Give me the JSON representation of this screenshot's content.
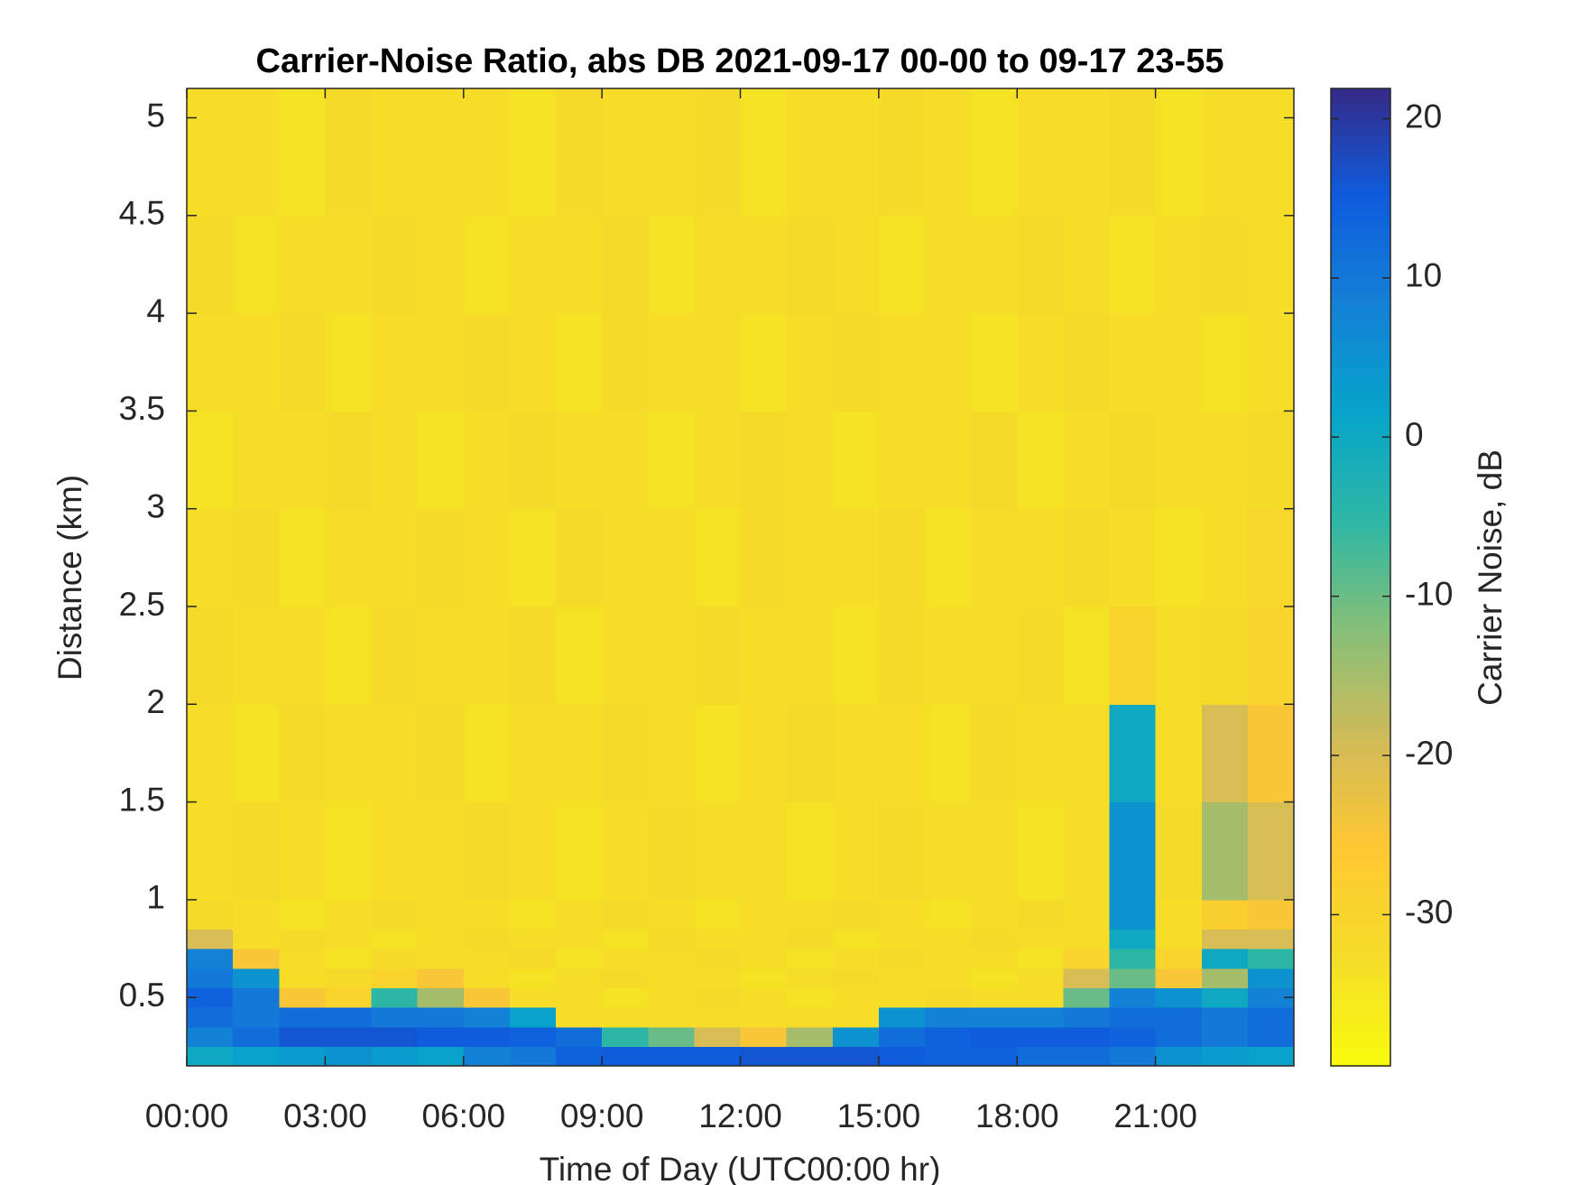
{
  "chart_data": {
    "type": "heatmap",
    "title": "Carrier-Noise Ratio, abs DB 2021-09-17 00-00 to 09-17 23-55",
    "xlabel": "Time of Day (UTC00:00 hr)",
    "ylabel": "Distance (km)",
    "colorbar_label": "Carrier Noise, dB",
    "colormap": "parula",
    "colormap_reversed": true,
    "x_edges": [
      0,
      1,
      2,
      3,
      4,
      5,
      6,
      7,
      8,
      9,
      10,
      11,
      12,
      13,
      14,
      15,
      16,
      17,
      18,
      19,
      20,
      21,
      22,
      23,
      24
    ],
    "y_edges": [
      0.15,
      0.25,
      0.35,
      0.45,
      0.55,
      0.65,
      0.75,
      0.85,
      1.0,
      1.5,
      2.0,
      2.5,
      3.0,
      3.5,
      4.0,
      4.5,
      5.15
    ],
    "z": [
      [
        0,
        2,
        3,
        5,
        3,
        2,
        8,
        10,
        14,
        15,
        15,
        15,
        16,
        16,
        16,
        15,
        14,
        14,
        12,
        12,
        10,
        5,
        3,
        2
      ],
      [
        8,
        12,
        16,
        16,
        16,
        15,
        15,
        14,
        12,
        -5,
        -10,
        -20,
        -25,
        -15,
        5,
        12,
        14,
        15,
        15,
        15,
        14,
        12,
        10,
        12
      ],
      [
        12,
        10,
        12,
        12,
        10,
        10,
        8,
        2,
        -33,
        -33,
        -33,
        -33,
        -33,
        -33,
        -33,
        5,
        8,
        8,
        8,
        10,
        12,
        12,
        10,
        12
      ],
      [
        14,
        10,
        -25,
        -30,
        -5,
        -15,
        -25,
        -33,
        -33,
        -34,
        -33,
        -32,
        -33,
        -34,
        -33,
        -33,
        -32,
        -33,
        -33,
        -10,
        8,
        5,
        0,
        8
      ],
      [
        10,
        5,
        -33,
        -32,
        -30,
        -25,
        -33,
        -34,
        -33,
        -32,
        -33,
        -33,
        -34,
        -33,
        -32,
        -33,
        -33,
        -34,
        -33,
        -20,
        -10,
        -25,
        -15,
        5
      ],
      [
        8,
        -25,
        -33,
        -34,
        -32,
        -33,
        -33,
        -32,
        -34,
        -33,
        -33,
        -32,
        -33,
        -34,
        -33,
        -32,
        -33,
        -33,
        -34,
        -30,
        -5,
        -30,
        0,
        -5
      ],
      [
        -20,
        -33,
        -32,
        -33,
        -34,
        -33,
        -32,
        -33,
        -33,
        -34,
        -32,
        -33,
        -33,
        -32,
        -34,
        -33,
        -33,
        -32,
        -33,
        -33,
        0,
        -33,
        -20,
        -20
      ],
      [
        -32,
        -33,
        -34,
        -33,
        -32,
        -33,
        -33,
        -34,
        -33,
        -32,
        -33,
        -34,
        -33,
        -33,
        -32,
        -33,
        -34,
        -33,
        -32,
        -33,
        5,
        -33,
        -28,
        -25
      ],
      [
        -33,
        -32,
        -33,
        -34,
        -33,
        -33,
        -32,
        -33,
        -34,
        -33,
        -32,
        -33,
        -33,
        -34,
        -33,
        -32,
        -33,
        -33,
        -34,
        -33,
        5,
        -32,
        -15,
        -20
      ],
      [
        -33,
        -34,
        -32,
        -33,
        -33,
        -32,
        -34,
        -33,
        -33,
        -32,
        -33,
        -34,
        -33,
        -32,
        -33,
        -33,
        -34,
        -32,
        -33,
        -33,
        0,
        -33,
        -20,
        -25
      ],
      [
        -32,
        -33,
        -33,
        -34,
        -32,
        -33,
        -33,
        -32,
        -34,
        -33,
        -33,
        -32,
        -33,
        -33,
        -34,
        -32,
        -33,
        -33,
        -32,
        -34,
        -30,
        -33,
        -32,
        -30
      ],
      [
        -33,
        -32,
        -34,
        -33,
        -33,
        -32,
        -33,
        -34,
        -32,
        -33,
        -33,
        -34,
        -32,
        -33,
        -33,
        -32,
        -34,
        -33,
        -33,
        -32,
        -33,
        -34,
        -33,
        -31
      ],
      [
        -34,
        -33,
        -33,
        -32,
        -33,
        -34,
        -33,
        -32,
        -33,
        -33,
        -34,
        -33,
        -32,
        -33,
        -34,
        -33,
        -33,
        -32,
        -34,
        -33,
        -32,
        -33,
        -33,
        -32
      ],
      [
        -33,
        -33,
        -32,
        -34,
        -33,
        -33,
        -32,
        -33,
        -34,
        -32,
        -33,
        -33,
        -34,
        -33,
        -32,
        -33,
        -33,
        -34,
        -33,
        -32,
        -33,
        -33,
        -34,
        -33
      ],
      [
        -32,
        -34,
        -33,
        -33,
        -32,
        -33,
        -34,
        -33,
        -33,
        -32,
        -34,
        -33,
        -33,
        -32,
        -33,
        -34,
        -33,
        -33,
        -32,
        -33,
        -34,
        -33,
        -32,
        -33
      ],
      [
        -33,
        -33,
        -34,
        -32,
        -33,
        -33,
        -33,
        -34,
        -32,
        -33,
        -33,
        -32,
        -34,
        -33,
        -33,
        -32,
        -33,
        -34,
        -33,
        -33,
        -32,
        -34,
        -33,
        -33
      ]
    ],
    "xlim": [
      0,
      24
    ],
    "ylim": [
      0.15,
      5.15
    ],
    "clim": [
      -39.5,
      21.9
    ],
    "xticks": [
      {
        "value": 0,
        "label": "00:00"
      },
      {
        "value": 3,
        "label": "03:00"
      },
      {
        "value": 6,
        "label": "06:00"
      },
      {
        "value": 9,
        "label": "09:00"
      },
      {
        "value": 12,
        "label": "12:00"
      },
      {
        "value": 15,
        "label": "15:00"
      },
      {
        "value": 18,
        "label": "18:00"
      },
      {
        "value": 21,
        "label": "21:00"
      }
    ],
    "yticks": [
      0.5,
      1,
      1.5,
      2,
      2.5,
      3,
      3.5,
      4,
      4.5,
      5
    ],
    "cticks": [
      20,
      10,
      0,
      -10,
      -20,
      -30
    ]
  }
}
